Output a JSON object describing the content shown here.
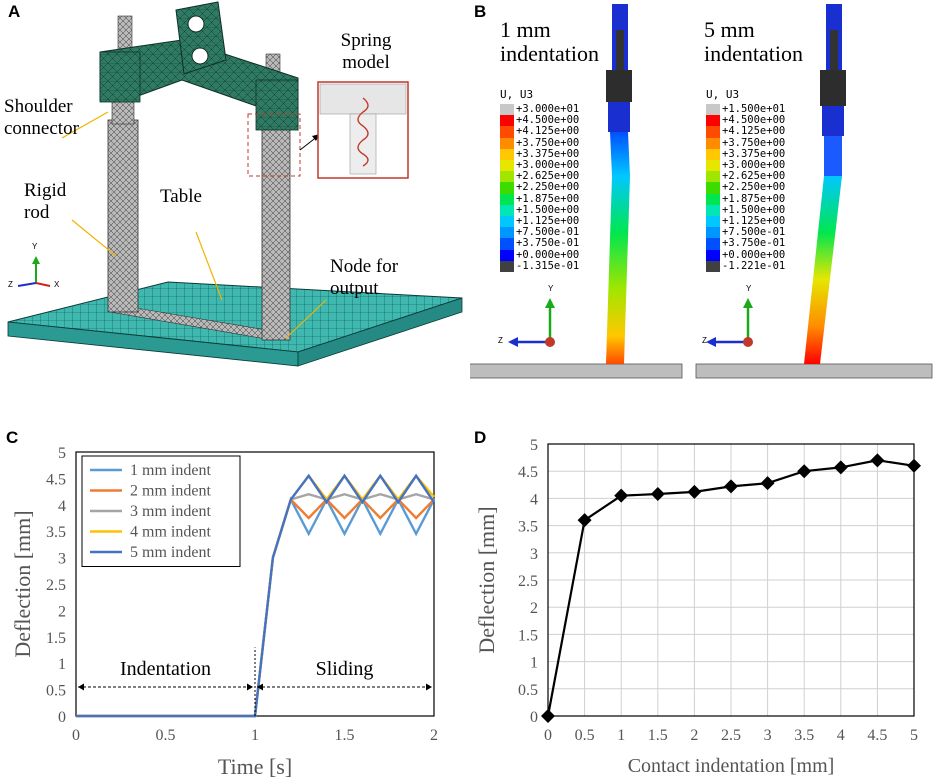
{
  "figure": {
    "panels": {
      "a": "A",
      "b": "B",
      "c": "C",
      "d": "D"
    }
  },
  "panel_a": {
    "labels": {
      "spring_model": "Spring model",
      "shoulder_connector": "Shoulder connector",
      "rigid_rod": "Rigid rod",
      "table": "Table",
      "node_for_output": "Node for output"
    },
    "axes": {
      "y": "Y",
      "z": "Z",
      "x": "X"
    }
  },
  "panel_b": {
    "left": {
      "title": "1 mm indentation",
      "legend_title": "U, U3",
      "levels": [
        "+3.000e+01",
        "+4.500e+00",
        "+4.125e+00",
        "+3.750e+00",
        "+3.375e+00",
        "+3.000e+00",
        "+2.625e+00",
        "+2.250e+00",
        "+1.875e+00",
        "+1.500e+00",
        "+1.125e+00",
        "+7.500e-01",
        "+3.750e-01",
        "+0.000e+00",
        "-1.315e-01"
      ]
    },
    "right": {
      "title": "5 mm indentation",
      "legend_title": "U, U3",
      "levels": [
        "+1.500e+01",
        "+4.500e+00",
        "+4.125e+00",
        "+3.750e+00",
        "+3.375e+00",
        "+3.000e+00",
        "+2.625e+00",
        "+2.250e+00",
        "+1.875e+00",
        "+1.500e+00",
        "+1.125e+00",
        "+7.500e-01",
        "+3.750e-01",
        "+0.000e+00",
        "-1.221e-01"
      ]
    },
    "colorbar_colors": [
      "#c8c8c8",
      "#ff0000",
      "#ff4b00",
      "#ff8c00",
      "#ffc800",
      "#e6e600",
      "#a0e600",
      "#3cdc00",
      "#00e650",
      "#00e6b4",
      "#00c8ff",
      "#0096ff",
      "#0050ff",
      "#0000ff",
      "#404040"
    ],
    "axes": {
      "y": "Y",
      "z": "Z"
    }
  },
  "chart_data": [
    {
      "id": "C",
      "type": "line",
      "xlabel": "Time [s]",
      "ylabel": "Deflection [mm]",
      "xlim": [
        0,
        2
      ],
      "ylim": [
        0,
        5
      ],
      "xticks": [
        "0",
        "0.5",
        "1",
        "1.5",
        "2"
      ],
      "yticks": [
        "0",
        "0.5",
        "1",
        "1.5",
        "2",
        "2.5",
        "3",
        "3.5",
        "4",
        "4.5",
        "5"
      ],
      "grid": false,
      "legend_position": "top-left",
      "annotations": [
        "Indentation",
        "Sliding"
      ],
      "series": [
        {
          "name": "1 mm indent",
          "color": "#5b9bd5",
          "x": [
            0,
            0.5,
            1,
            1.1,
            1.2,
            1.3,
            1.4,
            1.5,
            1.6,
            1.7,
            1.8,
            1.9,
            2.0
          ],
          "y": [
            0,
            0,
            0,
            3.0,
            4.1,
            3.45,
            4.1,
            3.45,
            4.1,
            3.45,
            4.1,
            3.45,
            4.1
          ]
        },
        {
          "name": "2 mm indent",
          "color": "#ed7d31",
          "x": [
            0,
            0.5,
            1,
            1.1,
            1.2,
            1.3,
            1.4,
            1.5,
            1.6,
            1.7,
            1.8,
            1.9,
            2.0
          ],
          "y": [
            0,
            0,
            0,
            3.0,
            4.1,
            3.75,
            4.1,
            3.75,
            4.1,
            3.75,
            4.1,
            3.75,
            4.1
          ]
        },
        {
          "name": "3 mm indent",
          "color": "#a5a5a5",
          "x": [
            0,
            0.5,
            1,
            1.1,
            1.2,
            1.3,
            1.4,
            1.5,
            1.6,
            1.7,
            1.8,
            1.9,
            2.0
          ],
          "y": [
            0,
            0,
            0,
            3.0,
            4.1,
            4.2,
            4.1,
            4.2,
            4.1,
            4.2,
            4.1,
            4.2,
            4.1
          ]
        },
        {
          "name": "4 mm indent",
          "color": "#ffc000",
          "x": [
            0,
            0.5,
            1,
            1.1,
            1.2,
            1.3,
            1.4,
            1.5,
            1.6,
            1.7,
            1.8,
            1.9,
            2.0
          ],
          "y": [
            0,
            0,
            0,
            3.0,
            4.1,
            4.55,
            4.1,
            4.55,
            4.1,
            4.55,
            4.1,
            4.55,
            4.15
          ]
        },
        {
          "name": "5 mm indent",
          "color": "#4472c4",
          "x": [
            0,
            0.5,
            1,
            1.1,
            1.2,
            1.3,
            1.4,
            1.5,
            1.6,
            1.7,
            1.8,
            1.9,
            2.0
          ],
          "y": [
            0,
            0,
            0,
            3.0,
            4.1,
            4.55,
            4.05,
            4.55,
            4.05,
            4.55,
            4.05,
            4.55,
            4.05
          ]
        }
      ]
    },
    {
      "id": "D",
      "type": "line",
      "xlabel": "Contact indentation [mm]",
      "ylabel": "Deflection [mm]",
      "xlim": [
        0,
        5
      ],
      "ylim": [
        0,
        5
      ],
      "xticks": [
        "0",
        "0.5",
        "1",
        "1.5",
        "2",
        "2.5",
        "3",
        "3.5",
        "4",
        "4.5",
        "5"
      ],
      "yticks": [
        "0",
        "0.5",
        "1",
        "1.5",
        "2",
        "2.5",
        "3",
        "3.5",
        "4",
        "4.5",
        "5"
      ],
      "grid": true,
      "marker": "diamond",
      "series": [
        {
          "x": [
            0,
            0.5,
            1,
            1.5,
            2,
            2.5,
            3,
            3.5,
            4,
            4.5,
            5
          ],
          "y": [
            0,
            3.6,
            4.05,
            4.08,
            4.12,
            4.22,
            4.28,
            4.5,
            4.57,
            4.7,
            4.6
          ]
        }
      ]
    }
  ]
}
